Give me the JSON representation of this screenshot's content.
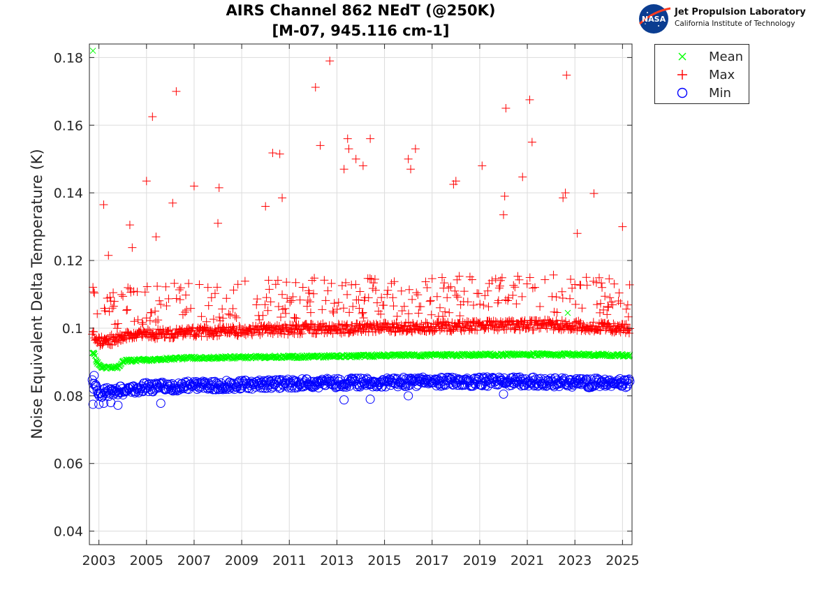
{
  "header": {
    "title_line1": "AIRS Channel 862 NEdT (@250K)",
    "title_line2": "[M-07, 945.116 cm-1]",
    "logo_name": "Jet Propulsion Laboratory",
    "logo_subtitle": "California Institute of Technology",
    "logo_badge": "NASA"
  },
  "chart_data": {
    "type": "scatter",
    "ylabel": "Noise Equivalent Delta Temperature (K)",
    "xlabel": "",
    "xlim": [
      2002.6,
      2025.4
    ],
    "ylim": [
      0.036,
      0.184
    ],
    "x_ticks": [
      2003,
      2005,
      2007,
      2009,
      2011,
      2013,
      2015,
      2017,
      2019,
      2021,
      2023,
      2025
    ],
    "x_tick_labels": [
      "2003",
      "2005",
      "2007",
      "2009",
      "2011",
      "2013",
      "2015",
      "2017",
      "2019",
      "2021",
      "2023",
      "2025"
    ],
    "y_ticks": [
      0.04,
      0.06,
      0.08,
      0.1,
      0.12,
      0.14,
      0.16,
      0.18
    ],
    "y_tick_labels": [
      "0.04",
      "0.06",
      "0.08",
      "0.1",
      "0.12",
      "0.14",
      "0.16",
      "0.18"
    ],
    "grid": true,
    "legend_position": "outside-top-right",
    "colors": {
      "mean": "#00ff00",
      "max": "#ff0000",
      "min": "#0000ff"
    },
    "series": [
      {
        "name": "Mean",
        "marker": "x",
        "x": [
          2002.75,
          2002.8,
          2002.9,
          2003.1,
          2003.5,
          2003.8,
          2004.0,
          2004.5,
          2005.0,
          2005.5,
          2006.0,
          2006.5,
          2007.0,
          2008.0,
          2009.0,
          2010.0,
          2011.0,
          2012.0,
          2013.0,
          2014.0,
          2015.0,
          2016.0,
          2017.0,
          2018.0,
          2019.0,
          2020.0,
          2021.0,
          2022.0,
          2022.7,
          2023.0,
          2024.0,
          2025.0,
          2025.3
        ],
        "y": [
          0.182,
          0.0925,
          0.09,
          0.0885,
          0.0883,
          0.0884,
          0.0902,
          0.0905,
          0.0906,
          0.0908,
          0.091,
          0.0911,
          0.0912,
          0.0913,
          0.0914,
          0.0915,
          0.0915,
          0.0916,
          0.0917,
          0.0918,
          0.0919,
          0.092,
          0.092,
          0.092,
          0.0921,
          0.0921,
          0.0922,
          0.0922,
          0.1045,
          0.0922,
          0.0921,
          0.092,
          0.0918
        ]
      },
      {
        "name": "Max",
        "marker": "+",
        "x": [
          2003.2,
          2003.4,
          2003.6,
          2004.3,
          2004.4,
          2005.0,
          2005.25,
          2005.4,
          2006.1,
          2006.25,
          2007.0,
          2008.0,
          2008.05,
          2010.0,
          2010.3,
          2010.6,
          2010.7,
          2012.1,
          2012.3,
          2012.7,
          2013.3,
          2013.45,
          2013.5,
          2013.8,
          2014.1,
          2014.4,
          2016.0,
          2016.1,
          2016.3,
          2017.9,
          2018.0,
          2019.1,
          2020.0,
          2020.05,
          2020.1,
          2020.8,
          2021.1,
          2021.2,
          2022.5,
          2022.6,
          2022.65,
          2023.1,
          2023.8,
          2025.0,
          2025.3
        ],
        "y": [
          0.1365,
          0.1215,
          0.1105,
          0.1305,
          0.1238,
          0.1435,
          0.1625,
          0.127,
          0.137,
          0.17,
          0.142,
          0.131,
          0.1415,
          0.136,
          0.1518,
          0.1515,
          0.1385,
          0.1712,
          0.154,
          0.179,
          0.147,
          0.156,
          0.153,
          0.15,
          0.148,
          0.156,
          0.15,
          0.147,
          0.153,
          0.1425,
          0.1435,
          0.148,
          0.1335,
          0.139,
          0.165,
          0.1447,
          0.1675,
          0.155,
          0.1385,
          0.14,
          0.1748,
          0.128,
          0.1398,
          0.13,
          0.1128
        ],
        "baseline": {
          "x": [
            2002.7,
            2003.0,
            2003.5,
            2003.9,
            2004.5,
            2006.0,
            2008.0,
            2010.0,
            2012.0,
            2014.0,
            2016.0,
            2018.0,
            2020.0,
            2022.0,
            2024.0,
            2025.3
          ],
          "y": [
            0.099,
            0.096,
            0.0965,
            0.097,
            0.098,
            0.0985,
            0.099,
            0.0995,
            0.0998,
            0.1,
            0.1003,
            0.1005,
            0.1008,
            0.101,
            0.1005,
            0.0998
          ]
        }
      },
      {
        "name": "Min",
        "marker": "o",
        "x": [
          2002.75,
          2002.8,
          2003.0,
          2003.2,
          2003.5,
          2003.8,
          2005.6,
          2013.3,
          2014.4,
          2016.0,
          2020.0
        ],
        "y": [
          0.0775,
          0.086,
          0.0775,
          0.0778,
          0.078,
          0.0772,
          0.0778,
          0.0788,
          0.079,
          0.08,
          0.0805
        ],
        "baseline": {
          "x": [
            2002.7,
            2003.0,
            2003.5,
            2003.9,
            2005.0,
            2007.0,
            2009.0,
            2011.0,
            2013.0,
            2015.0,
            2017.0,
            2019.0,
            2021.0,
            2023.0,
            2025.3
          ],
          "y": [
            0.0835,
            0.081,
            0.081,
            0.0815,
            0.0825,
            0.083,
            0.0833,
            0.0836,
            0.0838,
            0.084,
            0.0842,
            0.0842,
            0.0843,
            0.0838,
            0.0838
          ]
        }
      }
    ]
  }
}
